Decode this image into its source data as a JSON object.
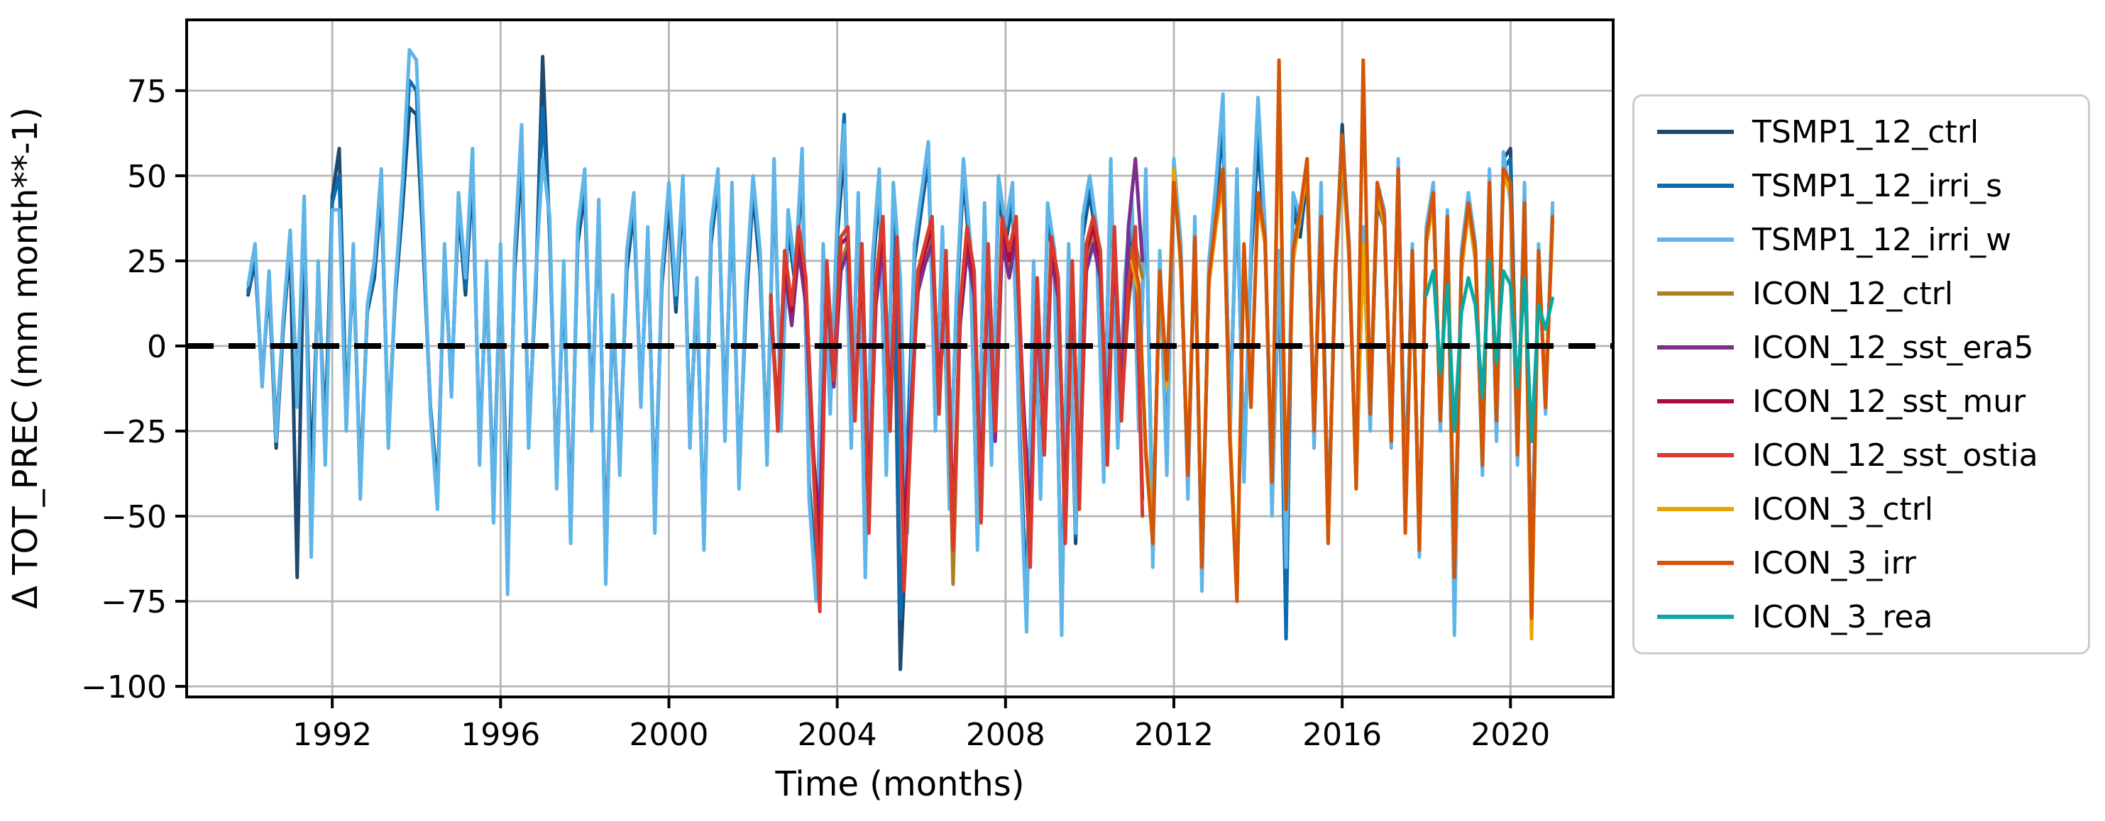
{
  "chart_data": {
    "type": "line",
    "title": "",
    "xlabel": "Time (months)",
    "ylabel": "Δ TOT_PREC (mm month**-1)",
    "xlim": [
      1988.54,
      2022.44
    ],
    "ylim": [
      -103.1,
      95.8
    ],
    "grid": true,
    "grid_color": "#b4b4b4",
    "background": "#ffffff",
    "legend_position": "outside-right",
    "legend_border_color": "#cccccc",
    "zero_line": {
      "value": 0,
      "color": "#000000",
      "style": "dashed"
    },
    "sample_step_years": 0.1666667,
    "xticks": [
      {
        "v": 1992,
        "label": "1992"
      },
      {
        "v": 1996,
        "label": "1996"
      },
      {
        "v": 2000,
        "label": "2000"
      },
      {
        "v": 2004,
        "label": "2004"
      },
      {
        "v": 2008,
        "label": "2008"
      },
      {
        "v": 2012,
        "label": "2012"
      },
      {
        "v": 2016,
        "label": "2016"
      },
      {
        "v": 2020,
        "label": "2020"
      }
    ],
    "yticks": [
      {
        "v": 75,
        "label": "75"
      },
      {
        "v": 50,
        "label": "50"
      },
      {
        "v": 25,
        "label": "25"
      },
      {
        "v": 0,
        "label": "0"
      },
      {
        "v": -25,
        "label": "−25"
      },
      {
        "v": -50,
        "label": "−50"
      },
      {
        "v": -75,
        "label": "−75"
      },
      {
        "v": -100,
        "label": "−100"
      }
    ],
    "series": [
      {
        "name": "TSMP1_12_ctrl",
        "color": "#1d4a6e",
        "x_start": 1990.0,
        "values": [
          15,
          25,
          -10,
          18,
          -30,
          5,
          30,
          -68,
          38,
          -40,
          20,
          -25,
          44,
          58,
          -20,
          25,
          -40,
          10,
          20,
          45,
          -25,
          15,
          40,
          70,
          68,
          28,
          -18,
          -42,
          25,
          -12,
          40,
          15,
          50,
          -30,
          20,
          -45,
          25,
          -55,
          22,
          55,
          -25,
          15,
          85,
          32,
          -38,
          20,
          -52,
          30,
          45,
          -20,
          38,
          -62,
          10,
          -32,
          22,
          40,
          -15,
          30,
          -48,
          18,
          42,
          10,
          45,
          -25,
          15,
          -55,
          30,
          48,
          -22,
          42,
          -38,
          12,
          45,
          22,
          -30,
          50,
          -20,
          35,
          18,
          52,
          -40,
          -68,
          25,
          -15,
          32,
          58,
          -25,
          40,
          -60,
          20,
          46,
          -32,
          42,
          -95,
          -48,
          25,
          40,
          55,
          -20,
          30,
          -42,
          10,
          50,
          25,
          -55,
          38,
          -30,
          45,
          30,
          42,
          -25,
          -75,
          20,
          -40,
          38,
          22,
          -78,
          25,
          -58,
          32,
          45,
          30,
          -35,
          50,
          -25,
          15,
          38,
          -20,
          46,
          -58,
          22,
          -32,
          50,
          25,
          -40,
          32,
          -65,
          20,
          42,
          65,
          -22,
          46,
          -35,
          25,
          60,
          30,
          -45,
          22,
          -58,
          40,
          32,
          50,
          -25,
          42,
          -52,
          18,
          65,
          25,
          -38,
          30,
          -20,
          42,
          35,
          -25,
          50,
          -42,
          25,
          -55,
          30,
          42,
          -20,
          35,
          -75,
          22,
          40,
          25,
          -32,
          46,
          -22,
          55,
          58,
          -30,
          42,
          -70,
          25,
          -15,
          38
        ]
      },
      {
        "name": "TSMP1_12_irri_s",
        "color": "#0c6cb0",
        "x_start": 1990.0,
        "values": [
          16,
          27,
          -11,
          20,
          -25,
          6,
          32,
          -15,
          40,
          -55,
          22,
          -30,
          42,
          50,
          -22,
          27,
          -42,
          11,
          22,
          48,
          -28,
          16,
          44,
          78,
          75,
          30,
          -19,
          -45,
          27,
          -13,
          42,
          17,
          54,
          -32,
          22,
          -48,
          27,
          -65,
          25,
          60,
          -27,
          17,
          70,
          35,
          -40,
          22,
          -55,
          32,
          48,
          -22,
          40,
          -65,
          12,
          -35,
          25,
          42,
          -16,
          32,
          -50,
          20,
          45,
          12,
          47,
          -27,
          17,
          -58,
          32,
          50,
          -25,
          45,
          -40,
          15,
          47,
          25,
          -32,
          52,
          -22,
          37,
          20,
          55,
          -42,
          -70,
          27,
          -17,
          35,
          68,
          -27,
          42,
          -64,
          22,
          49,
          -35,
          45,
          -80,
          -30,
          27,
          42,
          57,
          -22,
          32,
          -45,
          12,
          52,
          27,
          -57,
          40,
          -32,
          47,
          32,
          45,
          -27,
          -80,
          22,
          -42,
          40,
          25,
          -82,
          27,
          -56,
          35,
          47,
          32,
          -37,
          52,
          -27,
          17,
          40,
          -22,
          48,
          -60,
          25,
          -35,
          52,
          27,
          -42,
          35,
          -68,
          22,
          45,
          68,
          -25,
          48,
          -37,
          27,
          65,
          32,
          -47,
          25,
          -86,
          42,
          35,
          52,
          -27,
          45,
          -54,
          20,
          55,
          27,
          -40,
          32,
          -22,
          45,
          37,
          -27,
          52,
          -45,
          27,
          -58,
          32,
          45,
          -22,
          37,
          -78,
          25,
          42,
          27,
          -35,
          48,
          -25,
          52,
          55,
          -32,
          45,
          -72,
          27,
          -17,
          40
        ]
      },
      {
        "name": "TSMP1_12_irri_w",
        "color": "#5fb4e8",
        "x_start": 1990.0,
        "values": [
          18,
          30,
          -12,
          22,
          -28,
          8,
          34,
          -18,
          44,
          -62,
          25,
          -35,
          40,
          40,
          -25,
          30,
          -45,
          12,
          25,
          52,
          -30,
          18,
          48,
          87,
          84,
          35,
          -20,
          -48,
          30,
          -15,
          45,
          20,
          58,
          -35,
          25,
          -52,
          30,
          -73,
          28,
          65,
          -30,
          20,
          55,
          38,
          -42,
          25,
          -58,
          35,
          52,
          -25,
          43,
          -70,
          15,
          -38,
          28,
          45,
          -18,
          35,
          -55,
          22,
          48,
          15,
          50,
          -30,
          20,
          -60,
          35,
          52,
          -28,
          48,
          -42,
          18,
          50,
          28,
          -35,
          55,
          -25,
          40,
          22,
          58,
          -45,
          -75,
          30,
          -20,
          38,
          65,
          -30,
          45,
          -68,
          25,
          52,
          -38,
          48,
          20,
          -55,
          30,
          45,
          60,
          -25,
          35,
          -48,
          15,
          55,
          30,
          -60,
          42,
          -35,
          50,
          35,
          48,
          -30,
          -84,
          25,
          -45,
          42,
          28,
          -85,
          30,
          -55,
          38,
          50,
          35,
          -40,
          55,
          -30,
          20,
          44,
          -25,
          52,
          -65,
          28,
          -38,
          55,
          30,
          -45,
          38,
          -72,
          25,
          48,
          74,
          -28,
          52,
          -40,
          30,
          73,
          35,
          -50,
          28,
          -65,
          45,
          38,
          55,
          -30,
          48,
          -58,
          22,
          62,
          30,
          -42,
          35,
          -25,
          48,
          40,
          -30,
          55,
          -48,
          30,
          -62,
          35,
          48,
          -25,
          40,
          -85,
          28,
          45,
          30,
          -38,
          52,
          -28,
          57,
          42,
          -35,
          48,
          -78,
          30,
          -20,
          42
        ]
      },
      {
        "name": "ICON_12_ctrl",
        "color": "#ad7f21",
        "x_start": 2002.42,
        "values": [
          12,
          -18,
          25,
          8,
          30,
          15,
          -30,
          -55,
          20,
          -10,
          25,
          30,
          -20,
          28,
          -48,
          15,
          32,
          -25,
          28,
          -60,
          -20,
          18,
          26,
          32,
          -15,
          22,
          -70,
          8,
          30,
          18,
          -45,
          26,
          -25,
          32,
          22,
          30,
          -18,
          -58,
          15,
          -30,
          28,
          16,
          -55,
          20,
          -40,
          25,
          32,
          22,
          -28,
          35,
          -18,
          12,
          30,
          20
        ]
      },
      {
        "name": "ICON_12_sst_era5",
        "color": "#7d2d8c",
        "x_start": 2002.42,
        "values": [
          10,
          -20,
          22,
          6,
          28,
          12,
          -32,
          -50,
          18,
          -12,
          22,
          28,
          -22,
          30,
          -45,
          12,
          30,
          -22,
          25,
          -55,
          -18,
          16,
          24,
          30,
          -12,
          20,
          -52,
          6,
          28,
          15,
          -42,
          24,
          -28,
          30,
          20,
          32,
          -15,
          -52,
          12,
          -32,
          26,
          14,
          -48,
          18,
          -42,
          22,
          30,
          20,
          -25,
          32,
          -15,
          35,
          55,
          25
        ]
      },
      {
        "name": "ICON_12_sst_mur",
        "color": "#ac0a3d",
        "x_start": 2002.42,
        "values": [
          14,
          -22,
          26,
          10,
          32,
          18,
          -28,
          -65,
          22,
          -8,
          30,
          32,
          -18,
          25,
          -50,
          18,
          35,
          -20,
          30,
          -58,
          -22,
          20,
          28,
          35,
          -18,
          25,
          -55,
          10,
          32,
          20,
          -48,
          28,
          -22,
          35,
          25,
          35,
          -20,
          -60,
          18,
          -28,
          30,
          18,
          -52,
          22,
          -45,
          28,
          35,
          25,
          -30,
          30,
          -20,
          15,
          32,
          -45
        ]
      },
      {
        "name": "ICON_12_sst_ostia",
        "color": "#d93a2e",
        "x_start": 2002.42,
        "values": [
          15,
          -25,
          28,
          12,
          35,
          20,
          -32,
          -78,
          25,
          -10,
          32,
          35,
          -22,
          30,
          -55,
          20,
          38,
          -25,
          32,
          -72,
          -25,
          22,
          30,
          38,
          -20,
          28,
          -60,
          12,
          35,
          22,
          -52,
          30,
          -25,
          38,
          28,
          38,
          -22,
          -65,
          20,
          -32,
          32,
          20,
          -58,
          25,
          -48,
          30,
          38,
          28,
          -35,
          35,
          -22,
          18,
          35,
          -50
        ]
      },
      {
        "name": "ICON_3_ctrl",
        "color": "#eba302",
        "x_start": 2011.0,
        "values": [
          25,
          15,
          -30,
          -55,
          20,
          -12,
          52,
          22,
          -35,
          30,
          -60,
          18,
          35,
          48,
          -25,
          -70,
          28,
          -15,
          42,
          30,
          -38,
          75,
          -45,
          25,
          38,
          52,
          -22,
          35,
          -55,
          20,
          58,
          25,
          -40,
          30,
          -18,
          45,
          35,
          -25,
          48,
          -52,
          25,
          -58,
          30,
          42,
          -20,
          35,
          -65,
          22,
          40,
          25,
          -32,
          45,
          -20,
          50,
          45,
          -30,
          40,
          -86,
          25,
          -15,
          35
        ]
      },
      {
        "name": "ICON_3_irr",
        "color": "#d45506",
        "x_start": 2011.0,
        "values": [
          28,
          18,
          -32,
          -58,
          22,
          -10,
          48,
          25,
          -38,
          32,
          -65,
          20,
          38,
          52,
          -28,
          -75,
          30,
          -18,
          45,
          32,
          -40,
          84,
          -48,
          28,
          40,
          55,
          -25,
          38,
          -58,
          22,
          62,
          28,
          -42,
          84,
          -20,
          48,
          38,
          -28,
          52,
          -55,
          28,
          -60,
          32,
          45,
          -22,
          38,
          -68,
          25,
          42,
          28,
          -35,
          48,
          -22,
          52,
          48,
          -32,
          42,
          -80,
          28,
          -18,
          38
        ]
      },
      {
        "name": "ICON_3_rea",
        "color": "#0aa8a2",
        "x_start": 2018.0,
        "values": [
          15,
          22,
          -8,
          18,
          -25,
          10,
          20,
          12,
          -15,
          25,
          -5,
          22,
          18,
          -12,
          20,
          -28,
          12,
          5,
          14
        ]
      }
    ]
  }
}
